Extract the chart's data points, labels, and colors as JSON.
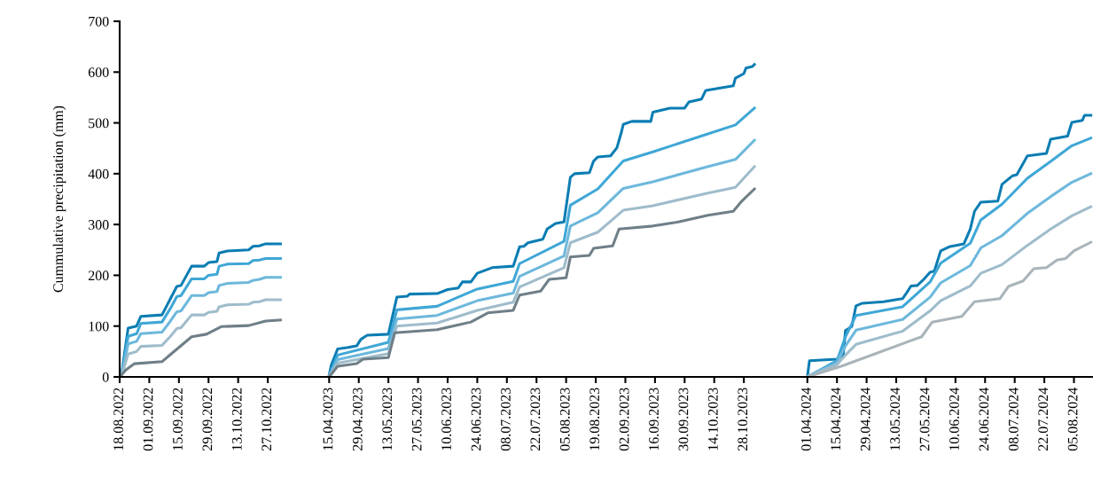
{
  "chart_data": [
    {
      "type": "line",
      "ylabel": "Cummulative precipitation (mm)",
      "xlim": [
        "2022-08-18",
        "2022-11-13"
      ],
      "ylim": [
        0,
        700
      ],
      "yticks": [
        0,
        100,
        200,
        300,
        400,
        500,
        600,
        700
      ],
      "xticks": [
        {
          "value": "2022-08-18",
          "label": "18.08.2022"
        },
        {
          "value": "2022-09-01",
          "label": "01.09.2022"
        },
        {
          "value": "2022-09-15",
          "label": "15.09.2022"
        },
        {
          "value": "2022-09-29",
          "label": "29.09.2022"
        },
        {
          "value": "2022-10-13",
          "label": "13.10.2022"
        },
        {
          "value": "2022-10-27",
          "label": "27.10.2022"
        }
      ],
      "grid": false,
      "series": [
        {
          "color": "#0b7db3",
          "x": [
            "2022-08-18",
            "2022-08-19",
            "2022-08-22",
            "2022-08-26",
            "2022-08-28",
            "2022-09-07",
            "2022-09-11",
            "2022-09-14",
            "2022-09-16",
            "2022-09-21",
            "2022-09-27",
            "2022-09-29",
            "2022-10-03",
            "2022-10-04",
            "2022-10-08",
            "2022-10-18",
            "2022-10-20",
            "2022-10-23",
            "2022-10-26",
            "2022-11-02"
          ],
          "values": [
            0,
            8,
            96,
            100,
            119,
            122,
            154,
            178,
            180,
            218,
            218,
            225,
            227,
            244,
            248,
            250,
            257,
            258,
            262,
            262
          ]
        },
        {
          "color": "#3fa7d6",
          "x": [
            "2022-08-18",
            "2022-08-19",
            "2022-08-22",
            "2022-08-26",
            "2022-08-28",
            "2022-09-07",
            "2022-09-11",
            "2022-09-14",
            "2022-09-16",
            "2022-09-21",
            "2022-09-27",
            "2022-09-29",
            "2022-10-03",
            "2022-10-04",
            "2022-10-08",
            "2022-10-18",
            "2022-10-20",
            "2022-10-23",
            "2022-10-26",
            "2022-11-02"
          ],
          "values": [
            0,
            6,
            80,
            85,
            105,
            108,
            135,
            158,
            160,
            193,
            193,
            200,
            202,
            218,
            222,
            223,
            229,
            230,
            233,
            233
          ]
        },
        {
          "color": "#6db8dc",
          "x": [
            "2022-08-18",
            "2022-08-19",
            "2022-08-22",
            "2022-08-26",
            "2022-08-28",
            "2022-09-07",
            "2022-09-11",
            "2022-09-14",
            "2022-09-16",
            "2022-09-21",
            "2022-09-27",
            "2022-09-29",
            "2022-10-03",
            "2022-10-04",
            "2022-10-08",
            "2022-10-18",
            "2022-10-20",
            "2022-10-23",
            "2022-10-26",
            "2022-11-02"
          ],
          "values": [
            0,
            5,
            65,
            70,
            85,
            88,
            110,
            128,
            130,
            160,
            160,
            166,
            168,
            180,
            184,
            186,
            190,
            192,
            196,
            196
          ]
        },
        {
          "color": "#9fbccb",
          "x": [
            "2022-08-18",
            "2022-08-19",
            "2022-08-22",
            "2022-08-26",
            "2022-08-28",
            "2022-09-07",
            "2022-09-11",
            "2022-09-14",
            "2022-09-16",
            "2022-09-21",
            "2022-09-27",
            "2022-09-29",
            "2022-10-03",
            "2022-10-04",
            "2022-10-08",
            "2022-10-18",
            "2022-10-20",
            "2022-10-23",
            "2022-10-26",
            "2022-11-02"
          ],
          "values": [
            0,
            4,
            45,
            50,
            60,
            62,
            80,
            95,
            97,
            122,
            122,
            127,
            129,
            138,
            142,
            143,
            147,
            148,
            152,
            152
          ]
        },
        {
          "color": "#6f7f88",
          "x": [
            "2022-08-18",
            "2022-08-21",
            "2022-08-25",
            "2022-09-07",
            "2022-09-11",
            "2022-09-21",
            "2022-09-28",
            "2022-10-05",
            "2022-10-18",
            "2022-10-26",
            "2022-11-02"
          ],
          "values": [
            0,
            14,
            26,
            30,
            44,
            79,
            84,
            99,
            101,
            110,
            112
          ]
        }
      ]
    },
    {
      "type": "line",
      "tick_labels": "x",
      "xlim": [
        "2023-04-03",
        "2023-11-17"
      ],
      "ylim": [
        0,
        700
      ],
      "xticks": [
        {
          "value": "2023-04-15",
          "label": "15.04.2023"
        },
        {
          "value": "2023-04-29",
          "label": "29.04.2023"
        },
        {
          "value": "2023-05-13",
          "label": "13.05.2023"
        },
        {
          "value": "2023-05-27",
          "label": "27.05.2023"
        },
        {
          "value": "2023-06-10",
          "label": "10.06.2023"
        },
        {
          "value": "2023-06-24",
          "label": "24.06.2023"
        },
        {
          "value": "2023-07-08",
          "label": "08.07.2023"
        },
        {
          "value": "2023-07-22",
          "label": "22.07.2023"
        },
        {
          "value": "2023-08-05",
          "label": "05.08.2023"
        },
        {
          "value": "2023-08-19",
          "label": "19.08.2023"
        },
        {
          "value": "2023-09-02",
          "label": "02.09.2023"
        },
        {
          "value": "2023-09-16",
          "label": "16.09.2023"
        },
        {
          "value": "2023-09-30",
          "label": "30.09.2023"
        },
        {
          "value": "2023-10-14",
          "label": "14.10.2023"
        },
        {
          "value": "2023-10-28",
          "label": "28.10.2023"
        }
      ],
      "grid": false,
      "series": [
        {
          "color": "#0b7db3",
          "x": [
            "2023-04-15",
            "2023-04-16",
            "2023-04-19",
            "2023-04-24",
            "2023-04-28",
            "2023-04-30",
            "2023-05-03",
            "2023-05-13",
            "2023-05-17",
            "2023-05-22",
            "2023-05-23",
            "2023-06-05",
            "2023-06-10",
            "2023-06-15",
            "2023-06-17",
            "2023-06-21",
            "2023-06-24",
            "2023-07-01",
            "2023-07-11",
            "2023-07-14",
            "2023-07-16",
            "2023-07-18",
            "2023-07-25",
            "2023-07-27",
            "2023-07-31",
            "2023-08-04",
            "2023-08-07",
            "2023-08-09",
            "2023-08-16",
            "2023-08-18",
            "2023-08-20",
            "2023-08-26",
            "2023-08-29",
            "2023-08-31",
            "2023-09-01",
            "2023-09-05",
            "2023-09-14",
            "2023-09-15",
            "2023-09-23",
            "2023-09-30",
            "2023-10-02",
            "2023-10-08",
            "2023-10-10",
            "2023-10-23",
            "2023-10-24",
            "2023-10-28",
            "2023-10-29",
            "2023-11-01",
            "2023-11-02"
          ],
          "values": [
            3,
            23,
            55,
            58,
            61,
            74,
            82,
            84,
            157,
            159,
            163,
            164,
            172,
            175,
            187,
            187,
            204,
            215,
            218,
            256,
            257,
            264,
            271,
            291,
            302,
            305,
            393,
            400,
            402,
            425,
            433,
            435,
            451,
            480,
            497,
            503,
            503,
            521,
            529,
            529,
            541,
            547,
            564,
            573,
            588,
            597,
            608,
            611,
            615
          ]
        },
        {
          "color": "#3fa7d6",
          "x": [
            "2023-04-15",
            "2023-04-19",
            "2023-05-13",
            "2023-05-17",
            "2023-06-05",
            "2023-06-24",
            "2023-07-11",
            "2023-07-14",
            "2023-08-04",
            "2023-08-07",
            "2023-08-20",
            "2023-09-01",
            "2023-09-15",
            "2023-10-10",
            "2023-10-24",
            "2023-11-02"
          ],
          "values": [
            2,
            43,
            68,
            132,
            139,
            173,
            188,
            223,
            267,
            338,
            370,
            425,
            443,
            477,
            496,
            529
          ]
        },
        {
          "color": "#6db8dc",
          "x": [
            "2023-04-15",
            "2023-04-19",
            "2023-05-13",
            "2023-05-17",
            "2023-06-05",
            "2023-06-24",
            "2023-07-11",
            "2023-07-14",
            "2023-08-04",
            "2023-08-07",
            "2023-08-20",
            "2023-09-01",
            "2023-09-15",
            "2023-10-10",
            "2023-10-24",
            "2023-11-02"
          ],
          "values": [
            1,
            34,
            56,
            114,
            121,
            150,
            165,
            198,
            238,
            297,
            323,
            371,
            384,
            413,
            428,
            466
          ]
        },
        {
          "color": "#9fbccb",
          "x": [
            "2023-04-15",
            "2023-04-19",
            "2023-05-13",
            "2023-05-17",
            "2023-06-05",
            "2023-06-24",
            "2023-07-11",
            "2023-07-14",
            "2023-08-04",
            "2023-08-07",
            "2023-08-20",
            "2023-09-01",
            "2023-09-15",
            "2023-10-10",
            "2023-10-24",
            "2023-11-02"
          ],
          "values": [
            1,
            27,
            46,
            100,
            106,
            131,
            147,
            177,
            215,
            264,
            285,
            328,
            337,
            361,
            373,
            414
          ]
        },
        {
          "color": "#6f7f88",
          "x": [
            "2023-04-15",
            "2023-04-19",
            "2023-04-28",
            "2023-05-01",
            "2023-05-13",
            "2023-05-16",
            "2023-06-05",
            "2023-06-21",
            "2023-06-29",
            "2023-07-11",
            "2023-07-14",
            "2023-07-24",
            "2023-07-28",
            "2023-08-05",
            "2023-08-07",
            "2023-08-16",
            "2023-08-18",
            "2023-08-27",
            "2023-08-30",
            "2023-09-15",
            "2023-09-27",
            "2023-10-11",
            "2023-10-23",
            "2023-10-27",
            "2023-11-02"
          ],
          "values": [
            0,
            21,
            26,
            35,
            38,
            87,
            93,
            108,
            126,
            131,
            161,
            169,
            192,
            195,
            236,
            239,
            253,
            258,
            291,
            297,
            305,
            318,
            326,
            346,
            370
          ]
        }
      ]
    },
    {
      "type": "line",
      "tick_labels": "x",
      "xlim": [
        "2024-03-22",
        "2024-08-14"
      ],
      "ylim": [
        0,
        700
      ],
      "xticks": [
        {
          "value": "2024-04-01",
          "label": "01.04.2024"
        },
        {
          "value": "2024-04-15",
          "label": "15.04.2024"
        },
        {
          "value": "2024-04-29",
          "label": "29.04.2024"
        },
        {
          "value": "2024-05-13",
          "label": "13.05.2024"
        },
        {
          "value": "2024-05-27",
          "label": "27.05.2024"
        },
        {
          "value": "2024-06-10",
          "label": "10.06.2024"
        },
        {
          "value": "2024-06-24",
          "label": "24.06.2024"
        },
        {
          "value": "2024-07-08",
          "label": "08.07.2024"
        },
        {
          "value": "2024-07-22",
          "label": "22.07.2024"
        },
        {
          "value": "2024-08-05",
          "label": "05.08.2024"
        }
      ],
      "grid": false,
      "series": [
        {
          "color": "#0b7db3",
          "x": [
            "2024-04-01",
            "2024-04-02",
            "2024-04-15",
            "2024-04-18",
            "2024-04-19",
            "2024-04-22",
            "2024-04-24",
            "2024-04-27",
            "2024-05-07",
            "2024-05-16",
            "2024-05-18",
            "2024-05-20",
            "2024-05-23",
            "2024-05-26",
            "2024-05-29",
            "2024-05-31",
            "2024-06-03",
            "2024-06-07",
            "2024-06-14",
            "2024-06-17",
            "2024-06-19",
            "2024-06-22",
            "2024-06-30",
            "2024-07-02",
            "2024-07-07",
            "2024-07-09",
            "2024-07-14",
            "2024-07-23",
            "2024-07-25",
            "2024-08-02",
            "2024-08-04",
            "2024-08-09",
            "2024-08-10",
            "2024-08-13"
          ],
          "values": [
            0,
            32,
            35,
            44,
            91,
            99,
            140,
            145,
            148,
            154,
            166,
            179,
            180,
            192,
            206,
            208,
            248,
            256,
            262,
            291,
            326,
            344,
            346,
            379,
            396,
            398,
            435,
            440,
            468,
            474,
            501,
            505,
            515,
            515
          ]
        },
        {
          "color": "#3fa7d6",
          "x": [
            "2024-04-01",
            "2024-04-15",
            "2024-04-19",
            "2024-04-24",
            "2024-05-16",
            "2024-05-29",
            "2024-06-03",
            "2024-06-17",
            "2024-06-22",
            "2024-07-02",
            "2024-07-14",
            "2024-07-25",
            "2024-08-04",
            "2024-08-13"
          ],
          "values": [
            0,
            32,
            79,
            121,
            138,
            187,
            224,
            263,
            309,
            340,
            391,
            424,
            455,
            470
          ]
        },
        {
          "color": "#6db8dc",
          "x": [
            "2024-04-01",
            "2024-04-15",
            "2024-04-19",
            "2024-04-24",
            "2024-05-16",
            "2024-05-29",
            "2024-06-03",
            "2024-06-17",
            "2024-06-22",
            "2024-07-02",
            "2024-07-14",
            "2024-07-25",
            "2024-08-04",
            "2024-08-13"
          ],
          "values": [
            0,
            28,
            61,
            92,
            113,
            157,
            185,
            219,
            254,
            278,
            322,
            355,
            383,
            400
          ]
        },
        {
          "color": "#9fbccb",
          "x": [
            "2024-04-01",
            "2024-04-15",
            "2024-04-19",
            "2024-04-24",
            "2024-05-16",
            "2024-05-29",
            "2024-06-03",
            "2024-06-17",
            "2024-06-22",
            "2024-07-02",
            "2024-07-14",
            "2024-07-25",
            "2024-08-04",
            "2024-08-13"
          ],
          "values": [
            0,
            24,
            43,
            64,
            90,
            130,
            150,
            179,
            204,
            221,
            259,
            291,
            317,
            335
          ]
        },
        {
          "color": "#a9b4ba",
          "x": [
            "2024-04-01",
            "2024-04-17",
            "2024-05-19",
            "2024-05-25",
            "2024-05-30",
            "2024-06-13",
            "2024-06-19",
            "2024-07-01",
            "2024-07-05",
            "2024-07-12",
            "2024-07-17",
            "2024-07-23",
            "2024-07-28",
            "2024-08-01",
            "2024-08-05",
            "2024-08-13"
          ],
          "values": [
            0,
            21,
            70,
            79,
            108,
            119,
            148,
            154,
            178,
            189,
            213,
            215,
            230,
            233,
            248,
            265
          ]
        }
      ]
    }
  ]
}
